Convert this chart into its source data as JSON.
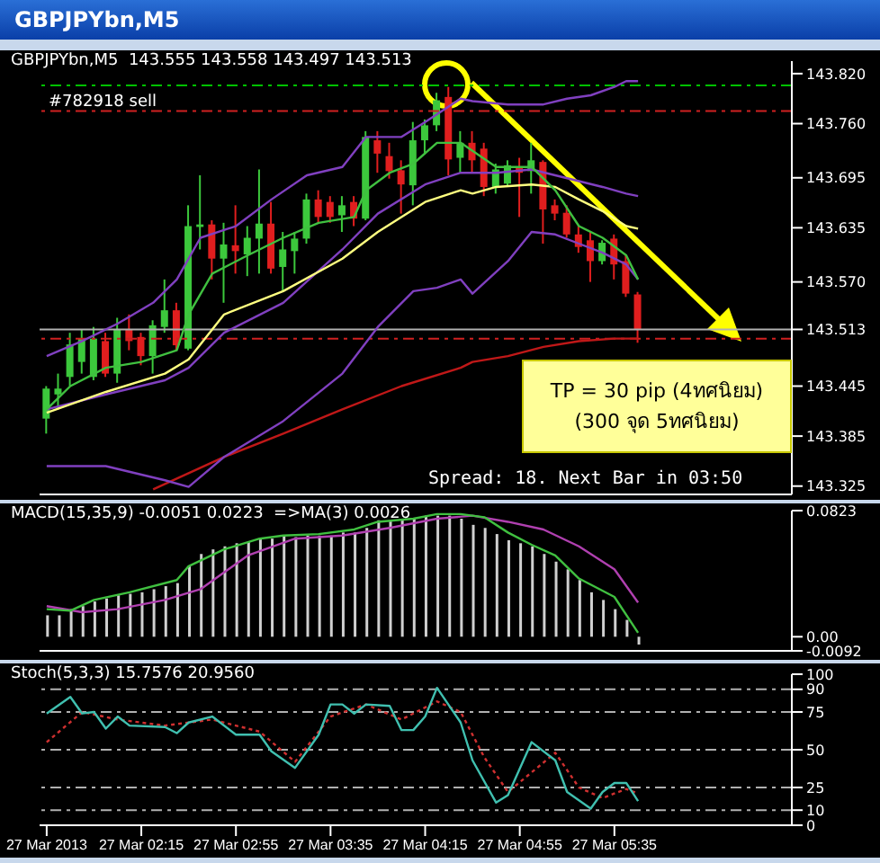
{
  "chart_data": [
    {
      "type": "candlestick",
      "title": "GBPJPYbn,M5",
      "subtitle": "GBPJPYbn,M5  143.555 143.558 143.497 143.513",
      "tick_labels": "y",
      "xlim": [
        "2013-03-27T01:32",
        "2013-03-27T06:50"
      ],
      "ylim": [
        143.315,
        143.835
      ],
      "yticks": [
        {
          "value": 143.82,
          "label": "143.820"
        },
        {
          "value": 143.76,
          "label": "143.760"
        },
        {
          "value": 143.695,
          "label": "143.695"
        },
        {
          "value": 143.635,
          "label": "143.635"
        },
        {
          "value": 143.57,
          "label": "143.570"
        },
        {
          "value": 143.513,
          "label": "143.513"
        },
        {
          "value": 143.445,
          "label": "143.445"
        },
        {
          "value": 143.385,
          "label": "143.385"
        },
        {
          "value": 143.325,
          "label": "143.325"
        }
      ],
      "annotations": [
        "TP = 30 pip (4ทศนิยม)",
        "(300 จุด 5ทศนิยม)",
        "Spread: 18. Next Bar in 03:50"
      ],
      "ref_lines": [
        {
          "axis": "y",
          "value": 143.806,
          "label": "#782918 sell",
          "color": "#00c000",
          "line_style": "dashed"
        },
        {
          "axis": "y",
          "value": 143.775,
          "color": "#d02020",
          "line_style": "dashed"
        },
        {
          "axis": "y",
          "value": 143.502,
          "color": "#d02020",
          "line_style": "dashed"
        },
        {
          "axis": "y",
          "value": 143.513,
          "color": "#b0b0b0"
        }
      ],
      "series": [
        {
          "type": "line",
          "color": "#c01818",
          "x": [
            "2013-03-27T02:20",
            "2013-03-27T02:50",
            "2013-03-27T03:15",
            "2013-03-27T03:40",
            "2013-03-27T04:05",
            "2013-03-27T04:30",
            "2013-03-27T04:35",
            "2013-03-27T04:50",
            "2013-03-27T05:05",
            "2013-03-27T05:20",
            "2013-03-27T05:35",
            "2013-03-27T05:45"
          ],
          "values": [
            143.321,
            143.36,
            143.388,
            143.417,
            143.445,
            143.467,
            143.474,
            143.481,
            143.492,
            143.499,
            143.502,
            143.502
          ]
        },
        {
          "type": "line",
          "color": "#8040c0",
          "x": [
            "2013-03-27T01:35",
            "2013-03-27T02:00",
            "2013-03-27T02:25",
            "2013-03-27T02:35",
            "2013-03-27T02:50",
            "2013-03-27T03:15",
            "2013-03-27T03:40",
            "2013-03-27T03:55",
            "2013-03-27T04:10",
            "2013-03-27T04:20",
            "2013-03-27T04:30",
            "2013-03-27T04:35",
            "2013-03-27T04:50",
            "2013-03-27T05:00",
            "2013-03-27T05:10",
            "2013-03-27T05:20",
            "2013-03-27T05:30",
            "2013-03-27T05:40",
            "2013-03-27T05:45"
          ],
          "values": [
            143.349,
            143.349,
            143.332,
            143.324,
            143.36,
            143.403,
            143.46,
            143.516,
            143.559,
            143.563,
            143.573,
            143.556,
            143.595,
            143.63,
            143.627,
            143.616,
            143.605,
            143.591,
            143.573
          ]
        },
        {
          "type": "line",
          "color": "#8040c0",
          "x": [
            "2013-03-27T01:35",
            "2013-03-27T02:00",
            "2013-03-27T02:25",
            "2013-03-27T02:35",
            "2013-03-27T02:50",
            "2013-03-27T03:15",
            "2013-03-27T03:40",
            "2013-03-27T03:55",
            "2013-03-27T04:15",
            "2013-03-27T04:30",
            "2013-03-27T04:45",
            "2013-03-27T05:00",
            "2013-03-27T05:10",
            "2013-03-27T05:20",
            "2013-03-27T05:30",
            "2013-03-27T05:40",
            "2013-03-27T05:45"
          ],
          "values": [
            143.417,
            143.435,
            143.452,
            143.467,
            143.509,
            143.545,
            143.609,
            143.652,
            143.687,
            143.701,
            143.701,
            143.705,
            143.698,
            143.691,
            143.684,
            143.676,
            143.673
          ]
        },
        {
          "type": "line",
          "color": "#8040c0",
          "x": [
            "2013-03-27T01:35",
            "2013-03-27T01:50",
            "2013-03-27T02:05",
            "2013-03-27T02:20",
            "2013-03-27T02:30",
            "2013-03-27T02:40",
            "2013-03-27T02:55",
            "2013-03-27T03:10",
            "2013-03-27T03:25",
            "2013-03-27T03:40",
            "2013-03-27T03:50",
            "2013-03-27T04:05",
            "2013-03-27T04:15",
            "2013-03-27T04:30",
            "2013-03-27T04:35",
            "2013-03-27T04:50",
            "2013-03-27T05:05",
            "2013-03-27T05:15",
            "2013-03-27T05:25",
            "2013-03-27T05:35",
            "2013-03-27T05:40",
            "2013-03-27T05:45"
          ],
          "values": [
            143.481,
            143.499,
            143.52,
            143.545,
            143.573,
            143.623,
            143.637,
            143.669,
            143.698,
            143.708,
            143.744,
            143.744,
            143.762,
            143.79,
            143.787,
            143.783,
            143.783,
            143.79,
            143.794,
            143.804,
            143.811,
            143.811
          ]
        },
        {
          "type": "line",
          "color": "#ffff80",
          "x": [
            "2013-03-27T01:35",
            "2013-03-27T02:00",
            "2013-03-27T02:25",
            "2013-03-27T02:35",
            "2013-03-27T02:50",
            "2013-03-27T03:15",
            "2013-03-27T03:40",
            "2013-03-27T03:55",
            "2013-03-27T04:15",
            "2013-03-27T04:30",
            "2013-03-27T04:35",
            "2013-03-27T04:45",
            "2013-03-27T05:00",
            "2013-03-27T05:10",
            "2013-03-27T05:20",
            "2013-03-27T05:30",
            "2013-03-27T05:40",
            "2013-03-27T05:45"
          ],
          "values": [
            143.413,
            143.438,
            143.46,
            143.477,
            143.531,
            143.559,
            143.598,
            143.63,
            143.666,
            143.68,
            143.676,
            143.684,
            143.687,
            143.684,
            143.669,
            143.655,
            143.637,
            143.634
          ]
        },
        {
          "type": "line",
          "color": "#40c040",
          "x": [
            "2013-03-27T01:35",
            "2013-03-27T01:45",
            "2013-03-27T02:00",
            "2013-03-27T02:15",
            "2013-03-27T02:30",
            "2013-03-27T02:35",
            "2013-03-27T02:45",
            "2013-03-27T03:00",
            "2013-03-27T03:15",
            "2013-03-27T03:30",
            "2013-03-27T03:45",
            "2013-03-27T03:50",
            "2013-03-27T04:00",
            "2013-03-27T04:10",
            "2013-03-27T04:20",
            "2013-03-27T04:30",
            "2013-03-27T04:45",
            "2013-03-27T05:00",
            "2013-03-27T05:10",
            "2013-03-27T05:20",
            "2013-03-27T05:30",
            "2013-03-27T05:40",
            "2013-03-27T05:45"
          ],
          "values": [
            143.417,
            143.445,
            143.467,
            143.474,
            143.488,
            143.531,
            143.58,
            143.602,
            143.623,
            143.641,
            143.648,
            143.68,
            143.701,
            143.712,
            143.737,
            143.737,
            143.708,
            143.708,
            143.68,
            143.637,
            143.623,
            143.602,
            143.573
          ]
        },
        {
          "colors": [
            "#3cc83c",
            "#3cc83c",
            "#3cc83c",
            "#3cc83c",
            "#3cc83c",
            "#e01e1e",
            "#3cc83c",
            "#e01e1e",
            "#e01e1e",
            "#3cc83c",
            "#3cc83c",
            "#e01e1e",
            "#3cc83c",
            "#3cc83c",
            "#e01e1e",
            "#3cc83c",
            "#e01e1e",
            "#3cc83c",
            "#3cc83c",
            "#e01e1e",
            "#3cc83c",
            "#3cc83c",
            "#3cc83c",
            "#e01e1e",
            "#e01e1e",
            "#3cc83c",
            "#e01e1e",
            "#3cc83c",
            "#e01e1e",
            "#e01e1e",
            "#e01e1e",
            "#3cc83c",
            "#3cc83c",
            "#3cc83c",
            "#e01e1e",
            "#3cc83c",
            "#e01e1e",
            "#e01e1e",
            "#3cc83c",
            "#3cc83c",
            "#e01e1e",
            "#3cc83c",
            "#e01e1e",
            "#e01e1e",
            "#e01e1e",
            "#e01e1e",
            "#e01e1e",
            "#3cc83c",
            "#e01e1e",
            "#e01e1e",
            "#e01e1e"
          ],
          "x": [
            "2013-03-27T01:35",
            "2013-03-27T01:40",
            "2013-03-27T01:45",
            "2013-03-27T01:50",
            "2013-03-27T01:55",
            "2013-03-27T02:00",
            "2013-03-27T02:05",
            "2013-03-27T02:10",
            "2013-03-27T02:15",
            "2013-03-27T02:20",
            "2013-03-27T02:25",
            "2013-03-27T02:30",
            "2013-03-27T02:35",
            "2013-03-27T02:40",
            "2013-03-27T02:45",
            "2013-03-27T02:50",
            "2013-03-27T02:55",
            "2013-03-27T03:00",
            "2013-03-27T03:05",
            "2013-03-27T03:10",
            "2013-03-27T03:15",
            "2013-03-27T03:20",
            "2013-03-27T03:25",
            "2013-03-27T03:30",
            "2013-03-27T03:35",
            "2013-03-27T03:40",
            "2013-03-27T03:45",
            "2013-03-27T03:50",
            "2013-03-27T03:55",
            "2013-03-27T04:00",
            "2013-03-27T04:05",
            "2013-03-27T04:10",
            "2013-03-27T04:15",
            "2013-03-27T04:20",
            "2013-03-27T04:25",
            "2013-03-27T04:30",
            "2013-03-27T04:35",
            "2013-03-27T04:40",
            "2013-03-27T04:45",
            "2013-03-27T04:50",
            "2013-03-27T04:55",
            "2013-03-27T05:00",
            "2013-03-27T05:05",
            "2013-03-27T05:10",
            "2013-03-27T05:15",
            "2013-03-27T05:20",
            "2013-03-27T05:25",
            "2013-03-27T05:30",
            "2013-03-27T05:35",
            "2013-03-27T05:40",
            "2013-03-27T05:45"
          ],
          "ohlc": [
            [
              143.406,
              143.445,
              143.388,
              143.442
            ],
            [
              143.435,
              143.46,
              143.417,
              143.442
            ],
            [
              143.456,
              143.509,
              143.445,
              143.495
            ],
            [
              143.474,
              143.513,
              143.46,
              143.502
            ],
            [
              143.456,
              143.516,
              143.452,
              143.502
            ],
            [
              143.499,
              143.509,
              143.456,
              143.46
            ],
            [
              143.46,
              143.527,
              143.449,
              143.513
            ],
            [
              143.513,
              143.531,
              143.488,
              143.499
            ],
            [
              143.504,
              143.509,
              143.47,
              143.481
            ],
            [
              143.481,
              143.524,
              143.46,
              143.518
            ],
            [
              143.516,
              143.573,
              143.509,
              143.536
            ],
            [
              143.536,
              143.545,
              143.488,
              143.494
            ],
            [
              143.49,
              143.662,
              143.488,
              143.637
            ],
            [
              143.636,
              143.698,
              143.609,
              143.639
            ],
            [
              143.639,
              143.644,
              143.573,
              143.598
            ],
            [
              143.598,
              143.641,
              143.545,
              143.615
            ],
            [
              143.614,
              143.662,
              143.58,
              143.607
            ],
            [
              143.603,
              143.637,
              143.577,
              143.623
            ],
            [
              143.622,
              143.705,
              143.58,
              143.64
            ],
            [
              143.64,
              143.666,
              143.58,
              143.586
            ],
            [
              143.588,
              143.63,
              143.559,
              143.609
            ],
            [
              143.607,
              143.63,
              143.58,
              143.622
            ],
            [
              143.622,
              143.676,
              143.616,
              143.669
            ],
            [
              143.669,
              143.68,
              143.641,
              143.648
            ],
            [
              143.666,
              143.673,
              143.641,
              143.648
            ],
            [
              143.65,
              143.673,
              143.63,
              143.662
            ],
            [
              143.666,
              143.673,
              143.637,
              143.646
            ],
            [
              143.646,
              143.751,
              143.644,
              143.744
            ],
            [
              143.74,
              143.751,
              143.701,
              143.724
            ],
            [
              143.721,
              143.737,
              143.694,
              143.703
            ],
            [
              143.704,
              143.716,
              143.652,
              143.687
            ],
            [
              143.686,
              143.762,
              143.662,
              143.74
            ],
            [
              143.74,
              143.765,
              143.723,
              143.758
            ],
            [
              143.758,
              143.797,
              143.751,
              143.788
            ],
            [
              143.792,
              143.804,
              143.698,
              143.717
            ],
            [
              143.719,
              143.751,
              143.701,
              143.737
            ],
            [
              143.737,
              143.751,
              143.701,
              143.716
            ],
            [
              143.73,
              143.737,
              143.673,
              143.684
            ],
            [
              143.684,
              143.712,
              143.676,
              143.705
            ],
            [
              143.688,
              143.716,
              143.684,
              143.71
            ],
            [
              143.708,
              143.719,
              143.648,
              143.701
            ],
            [
              143.703,
              143.737,
              143.676,
              143.716
            ],
            [
              143.714,
              143.716,
              143.616,
              143.657
            ],
            [
              143.662,
              143.669,
              143.644,
              143.652
            ],
            [
              143.653,
              143.662,
              143.623,
              143.627
            ],
            [
              143.627,
              143.637,
              143.605,
              143.612
            ],
            [
              143.62,
              143.63,
              143.57,
              143.595
            ],
            [
              143.595,
              143.62,
              143.591,
              143.617
            ],
            [
              143.622,
              143.627,
              143.573,
              143.591
            ],
            [
              143.595,
              143.602,
              143.552,
              143.556
            ],
            [
              143.555,
              143.558,
              143.497,
              143.513
            ]
          ]
        }
      ]
    },
    {
      "type": "bar",
      "subtitle": "MACD(15,35,9) -0.0051 0.0223  =>MA(3) 0.0026",
      "tick_labels": "y",
      "xlim": [
        "2013-03-27T01:32",
        "2013-03-27T06:50"
      ],
      "ylim": [
        -0.0092,
        0.0823
      ],
      "yticks": [
        0.0823,
        {
          "value": 0,
          "label": "0.00"
        },
        -0.0092
      ],
      "series": [
        {
          "color": "#d0d0d0",
          "x": [
            "2013-03-27T01:35",
            "2013-03-27T01:40",
            "2013-03-27T01:45",
            "2013-03-27T01:50",
            "2013-03-27T01:55",
            "2013-03-27T02:00",
            "2013-03-27T02:05",
            "2013-03-27T02:10",
            "2013-03-27T02:15",
            "2013-03-27T02:20",
            "2013-03-27T02:25",
            "2013-03-27T02:30",
            "2013-03-27T02:35",
            "2013-03-27T02:40",
            "2013-03-27T02:45",
            "2013-03-27T02:50",
            "2013-03-27T02:55",
            "2013-03-27T03:00",
            "2013-03-27T03:05",
            "2013-03-27T03:10",
            "2013-03-27T03:15",
            "2013-03-27T03:20",
            "2013-03-27T03:25",
            "2013-03-27T03:30",
            "2013-03-27T03:35",
            "2013-03-27T03:40",
            "2013-03-27T03:45",
            "2013-03-27T03:50",
            "2013-03-27T03:55",
            "2013-03-27T04:00",
            "2013-03-27T04:05",
            "2013-03-27T04:10",
            "2013-03-27T04:15",
            "2013-03-27T04:20",
            "2013-03-27T04:25",
            "2013-03-27T04:30",
            "2013-03-27T04:35",
            "2013-03-27T04:40",
            "2013-03-27T04:45",
            "2013-03-27T04:50",
            "2013-03-27T04:55",
            "2013-03-27T05:00",
            "2013-03-27T05:05",
            "2013-03-27T05:10",
            "2013-03-27T05:15",
            "2013-03-27T05:20",
            "2013-03-27T05:25",
            "2013-03-27T05:30",
            "2013-03-27T05:35",
            "2013-03-27T05:40",
            "2013-03-27T05:45"
          ],
          "values": [
            0.014,
            0.014,
            0.018,
            0.02,
            0.023,
            0.025,
            0.027,
            0.028,
            0.029,
            0.031,
            0.033,
            0.035,
            0.046,
            0.054,
            0.057,
            0.059,
            0.061,
            0.062,
            0.064,
            0.064,
            0.066,
            0.065,
            0.066,
            0.066,
            0.066,
            0.068,
            0.068,
            0.071,
            0.076,
            0.076,
            0.076,
            0.077,
            0.079,
            0.079,
            0.079,
            0.077,
            0.073,
            0.071,
            0.067,
            0.063,
            0.061,
            0.059,
            0.054,
            0.049,
            0.044,
            0.037,
            0.029,
            0.024,
            0.018,
            0.011,
            -0.0051
          ]
        },
        {
          "type": "line",
          "color": "#b040b0",
          "x": [
            "2013-03-27T01:35",
            "2013-03-27T01:50",
            "2013-03-27T02:05",
            "2013-03-27T02:25",
            "2013-03-27T02:40",
            "2013-03-27T03:00",
            "2013-03-27T03:20",
            "2013-03-27T03:40",
            "2013-03-27T04:00",
            "2013-03-27T04:20",
            "2013-03-27T04:35",
            "2013-03-27T04:50",
            "2013-03-27T05:05",
            "2013-03-27T05:20",
            "2013-03-27T05:35",
            "2013-03-27T05:45"
          ],
          "values": [
            0.02,
            0.016,
            0.018,
            0.024,
            0.031,
            0.053,
            0.064,
            0.066,
            0.071,
            0.077,
            0.079,
            0.075,
            0.07,
            0.059,
            0.044,
            0.0223
          ]
        },
        {
          "type": "line",
          "color": "#40c040",
          "x": [
            "2013-03-27T01:35",
            "2013-03-27T01:45",
            "2013-03-27T01:55",
            "2013-03-27T02:10",
            "2013-03-27T02:30",
            "2013-03-27T02:35",
            "2013-03-27T02:50",
            "2013-03-27T03:05",
            "2013-03-27T03:15",
            "2013-03-27T03:30",
            "2013-03-27T03:45",
            "2013-03-27T03:55",
            "2013-03-27T04:10",
            "2013-03-27T04:20",
            "2013-03-27T04:30",
            "2013-03-27T04:40",
            "2013-03-27T04:50",
            "2013-03-27T05:00",
            "2013-03-27T05:10",
            "2013-03-27T05:20",
            "2013-03-27T05:35",
            "2013-03-27T05:45"
          ],
          "values": [
            0.018,
            0.017,
            0.024,
            0.029,
            0.037,
            0.046,
            0.057,
            0.064,
            0.066,
            0.067,
            0.07,
            0.075,
            0.077,
            0.08,
            0.08,
            0.078,
            0.068,
            0.06,
            0.053,
            0.038,
            0.026,
            0.0026
          ]
        }
      ]
    },
    {
      "type": "line",
      "subtitle": "Stoch(5,3,3) 15.7576 20.9560",
      "xlim": [
        "2013-03-27T01:32",
        "2013-03-27T06:50"
      ],
      "ylim": [
        0,
        100
      ],
      "yticks": [
        100,
        90,
        75,
        50,
        25,
        10,
        0
      ],
      "xticks": [
        {
          "value": "2013-03-27T01:35",
          "label": "27 Mar 2013"
        },
        {
          "value": "2013-03-27T02:15",
          "label": "27 Mar 02:15"
        },
        {
          "value": "2013-03-27T02:55",
          "label": "27 Mar 02:55"
        },
        {
          "value": "2013-03-27T03:35",
          "label": "27 Mar 03:35"
        },
        {
          "value": "2013-03-27T04:15",
          "label": "27 Mar 04:15"
        },
        {
          "value": "2013-03-27T04:55",
          "label": "27 Mar 04:55"
        },
        {
          "value": "2013-03-27T05:35",
          "label": "27 Mar 05:35"
        }
      ],
      "ref_lines": [
        {
          "axis": "y",
          "value": 90,
          "color": "#b0b0b0",
          "line_style": "dashed"
        },
        {
          "axis": "y",
          "value": 75,
          "color": "#b0b0b0",
          "line_style": "dashed"
        },
        {
          "axis": "y",
          "value": 50,
          "color": "#b0b0b0",
          "line_style": "dashed"
        },
        {
          "axis": "y",
          "value": 25,
          "color": "#b0b0b0",
          "line_style": "dashed"
        },
        {
          "axis": "y",
          "value": 10,
          "color": "#b0b0b0",
          "line_style": "dashed"
        }
      ],
      "series": [
        {
          "color": "#d03030",
          "line_style": "dotted",
          "x": [
            "2013-03-27T01:35",
            "2013-03-27T01:50",
            "2013-03-27T02:05",
            "2013-03-27T02:25",
            "2013-03-27T02:45",
            "2013-03-27T03:05",
            "2013-03-27T03:20",
            "2013-03-27T03:35",
            "2013-03-27T03:50",
            "2013-03-27T04:05",
            "2013-03-27T04:20",
            "2013-03-27T04:30",
            "2013-03-27T04:40",
            "2013-03-27T04:50",
            "2013-03-27T05:00",
            "2013-03-27T05:10",
            "2013-03-27T05:20",
            "2013-03-27T05:30",
            "2013-03-27T05:40",
            "2013-03-27T05:45"
          ],
          "values": [
            55,
            75,
            70,
            66,
            70,
            62,
            42,
            72,
            80,
            70,
            82,
            75,
            45,
            22,
            35,
            48,
            25,
            18,
            24,
            21
          ]
        },
        {
          "color": "#40c0b0",
          "x": [
            "2013-03-27T01:35",
            "2013-03-27T01:45",
            "2013-03-27T01:50",
            "2013-03-27T01:55",
            "2013-03-27T02:00",
            "2013-03-27T02:05",
            "2013-03-27T02:10",
            "2013-03-27T02:25",
            "2013-03-27T02:30",
            "2013-03-27T02:35",
            "2013-03-27T02:45",
            "2013-03-27T02:55",
            "2013-03-27T03:05",
            "2013-03-27T03:10",
            "2013-03-27T03:20",
            "2013-03-27T03:30",
            "2013-03-27T03:35",
            "2013-03-27T03:40",
            "2013-03-27T03:45",
            "2013-03-27T03:50",
            "2013-03-27T04:00",
            "2013-03-27T04:05",
            "2013-03-27T04:10",
            "2013-03-27T04:15",
            "2013-03-27T04:20",
            "2013-03-27T04:30",
            "2013-03-27T04:35",
            "2013-03-27T04:45",
            "2013-03-27T04:50",
            "2013-03-27T05:00",
            "2013-03-27T05:10",
            "2013-03-27T05:15",
            "2013-03-27T05:25",
            "2013-03-27T05:30",
            "2013-03-27T05:35",
            "2013-03-27T05:40",
            "2013-03-27T05:45"
          ],
          "values": [
            74,
            85,
            74,
            75,
            64,
            72,
            66,
            65,
            61,
            68,
            72,
            60,
            60,
            49,
            38,
            60,
            80,
            80,
            74,
            80,
            79,
            63,
            63,
            72,
            91,
            68,
            43,
            15,
            20,
            55,
            43,
            22,
            11,
            22,
            28,
            28,
            16
          ]
        }
      ]
    }
  ]
}
